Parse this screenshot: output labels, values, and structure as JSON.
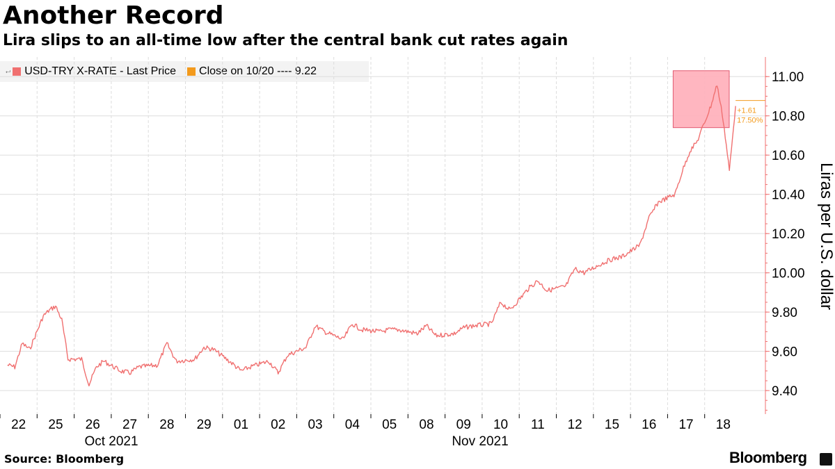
{
  "header": {
    "title": "Another Record",
    "subtitle": "Lira slips to an all-time low after the central bank cut rates again"
  },
  "legend": {
    "series_label": "USD-TRY X-RATE - Last Price",
    "close_label": "Close on 10/20 ---- 9.22"
  },
  "annotation": {
    "change": "+1.61",
    "change_pct": "17.50%"
  },
  "footer": {
    "source": "Source: Bloomberg",
    "brand": "Bloomberg"
  },
  "colors": {
    "series": "#f07070",
    "close_marker": "#f39a1c",
    "highlight_fill": "#ffb3bd",
    "highlight_stroke": "#e0506a",
    "axis": "#f07070",
    "grid": "#dddddd"
  },
  "chart_data": {
    "type": "line",
    "ylabel": "Liras per U.S. dollar",
    "xlabel": "",
    "ylim": [
      9.28,
      11.1
    ],
    "yticks": [
      "11.00",
      "10.80",
      "10.60",
      "10.40",
      "10.20",
      "10.00",
      "9.80",
      "9.60",
      "9.40"
    ],
    "grid": true,
    "legend_position": "top-left",
    "x_tick_labels": [
      "22",
      "25",
      "26",
      "27",
      "28",
      "29",
      "01",
      "02",
      "03",
      "04",
      "05",
      "08",
      "09",
      "10",
      "11",
      "12",
      "15",
      "16",
      "17",
      "18"
    ],
    "x_group_labels": [
      "Oct 2021",
      "Nov 2021"
    ],
    "series": [
      {
        "name": "USD-TRY X-RATE - Last Price",
        "x": [
          "Oct 22",
          "Oct 22",
          "Oct 22",
          "Oct 22",
          "Oct 25",
          "Oct 25",
          "Oct 25",
          "Oct 25",
          "Oct 25",
          "Oct 26",
          "Oct 26",
          "Oct 26",
          "Oct 26",
          "Oct 27",
          "Oct 27",
          "Oct 27",
          "Oct 28",
          "Oct 28",
          "Oct 28",
          "Oct 29",
          "Oct 29",
          "Oct 29",
          "Nov 01",
          "Nov 01",
          "Nov 01",
          "Nov 02",
          "Nov 02",
          "Nov 02",
          "Nov 03",
          "Nov 03",
          "Nov 03",
          "Nov 04",
          "Nov 04",
          "Nov 04",
          "Nov 05",
          "Nov 05",
          "Nov 05",
          "Nov 08",
          "Nov 08",
          "Nov 08",
          "Nov 09",
          "Nov 09",
          "Nov 09",
          "Nov 10",
          "Nov 10",
          "Nov 10",
          "Nov 11",
          "Nov 11",
          "Nov 11",
          "Nov 12",
          "Nov 12",
          "Nov 12",
          "Nov 15",
          "Nov 15",
          "Nov 15",
          "Nov 16",
          "Nov 16",
          "Nov 16",
          "Nov 17",
          "Nov 17",
          "Nov 17",
          "Nov 17",
          "Nov 18",
          "Nov 18",
          "Nov 18",
          "Nov 18",
          "Nov 18"
        ],
        "values": [
          9.53,
          9.52,
          9.64,
          9.61,
          9.78,
          9.81,
          9.83,
          9.76,
          9.56,
          9.56,
          9.43,
          9.52,
          9.55,
          9.5,
          9.49,
          9.52,
          9.53,
          9.64,
          9.55,
          9.56,
          9.62,
          9.61,
          9.54,
          9.5,
          9.52,
          9.55,
          9.49,
          9.58,
          9.62,
          9.73,
          9.7,
          9.66,
          9.74,
          9.71,
          9.7,
          9.71,
          9.71,
          9.69,
          9.73,
          9.68,
          9.69,
          9.72,
          9.73,
          9.74,
          9.85,
          9.81,
          9.92,
          9.96,
          9.91,
          9.93,
          10.02,
          10.0,
          10.05,
          10.07,
          10.08,
          10.14,
          10.28,
          10.36,
          10.4,
          10.52,
          10.62,
          10.67,
          10.85,
          10.96,
          10.78,
          10.52,
          10.85
        ]
      }
    ],
    "close_marker": {
      "date": "10/20",
      "value": 9.22
    },
    "highlight": {
      "x": [
        "Nov 17",
        "Nov 18"
      ],
      "y": [
        10.74,
        11.03
      ]
    }
  }
}
